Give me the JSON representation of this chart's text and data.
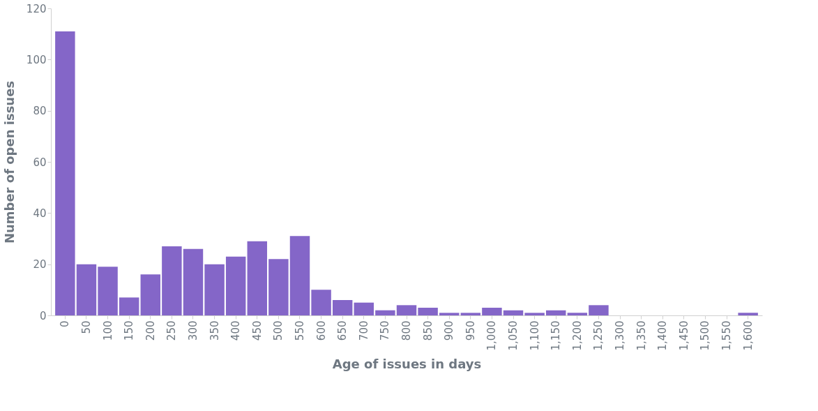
{
  "chart_data": {
    "type": "bar",
    "xlabel": "Age of issues in days",
    "ylabel": "Number of open issues",
    "categories": [
      "0",
      "50",
      "100",
      "150",
      "200",
      "250",
      "300",
      "350",
      "400",
      "450",
      "500",
      "550",
      "600",
      "650",
      "700",
      "750",
      "800",
      "850",
      "900",
      "950",
      "1,000",
      "1,050",
      "1,100",
      "1,150",
      "1,200",
      "1,250",
      "1,300",
      "1,350",
      "1,400",
      "1,450",
      "1,500",
      "1,550",
      "1,600"
    ],
    "values": [
      111,
      20,
      19,
      7,
      16,
      27,
      26,
      20,
      23,
      29,
      22,
      31,
      10,
      6,
      5,
      2,
      4,
      3,
      1,
      1,
      3,
      2,
      1,
      2,
      1,
      4,
      0,
      0,
      0,
      0,
      0,
      0,
      1
    ],
    "color": "#8466c8",
    "ylim": [
      0,
      120
    ],
    "yticks": [
      0,
      20,
      40,
      60,
      80,
      100,
      120
    ],
    "grid": false
  }
}
